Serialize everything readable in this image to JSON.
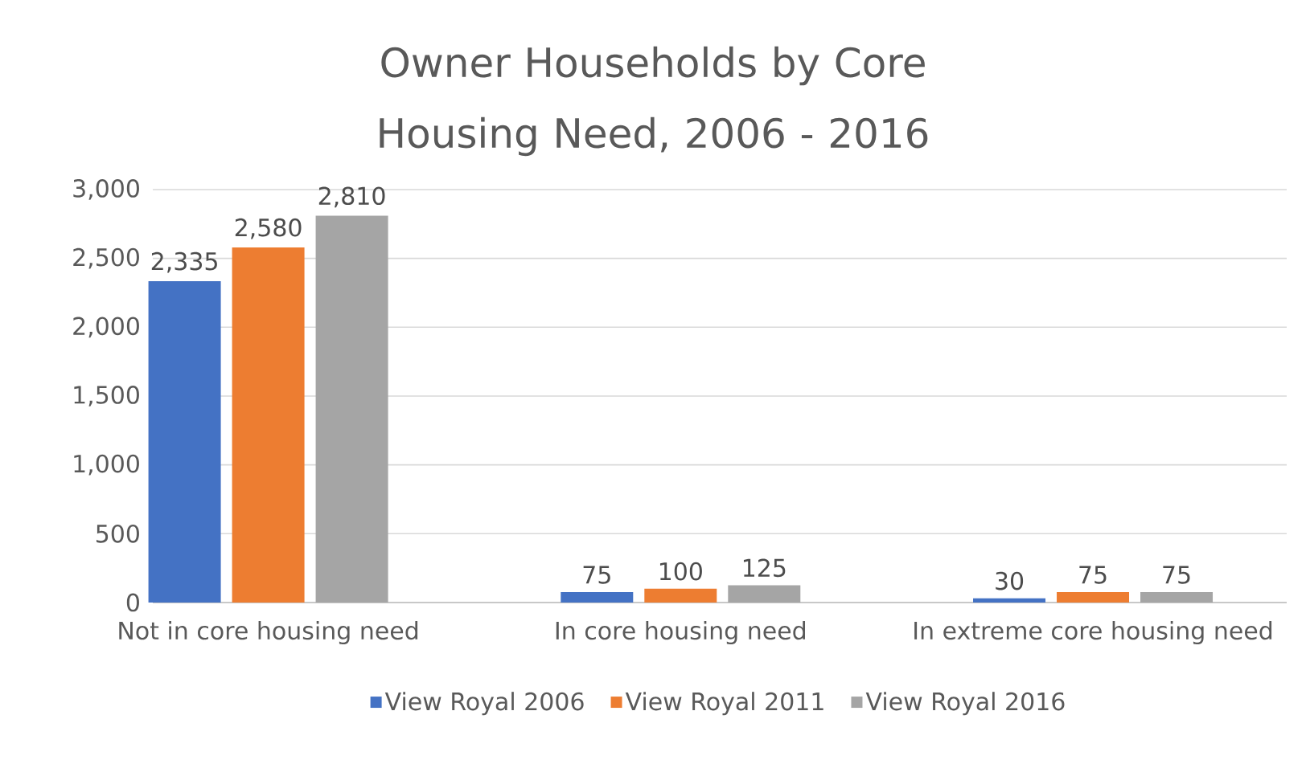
{
  "chart_data": {
    "type": "bar",
    "title": "Owner Households by Core Housing Need, 2006 - 2016",
    "categories": [
      "Not in core housing need",
      "In core housing need",
      "In extreme core housing need"
    ],
    "series": [
      {
        "name": "View Royal 2006",
        "color": "#4472c4",
        "values": [
          2335,
          75,
          30
        ],
        "value_labels": [
          "2,335",
          "75",
          "30"
        ]
      },
      {
        "name": "View Royal 2011",
        "color": "#ed7d31",
        "values": [
          2580,
          100,
          75
        ],
        "value_labels": [
          "2,580",
          "100",
          "75"
        ]
      },
      {
        "name": "View Royal 2016",
        "color": "#a5a5a5",
        "values": [
          2810,
          125,
          75
        ],
        "value_labels": [
          "2,810",
          "125",
          "75"
        ]
      }
    ],
    "ylim": [
      0,
      3000
    ],
    "yticks": [
      0,
      500,
      {
        "value": 1000,
        "label": "1,000"
      },
      {
        "value": 1500,
        "label": "1,500"
      },
      {
        "value": 2000,
        "label": "2,000"
      },
      {
        "value": 2500,
        "label": "2,500"
      },
      {
        "value": 3000,
        "label": "3,000"
      }
    ],
    "grid": "y",
    "legend": "bottom"
  }
}
